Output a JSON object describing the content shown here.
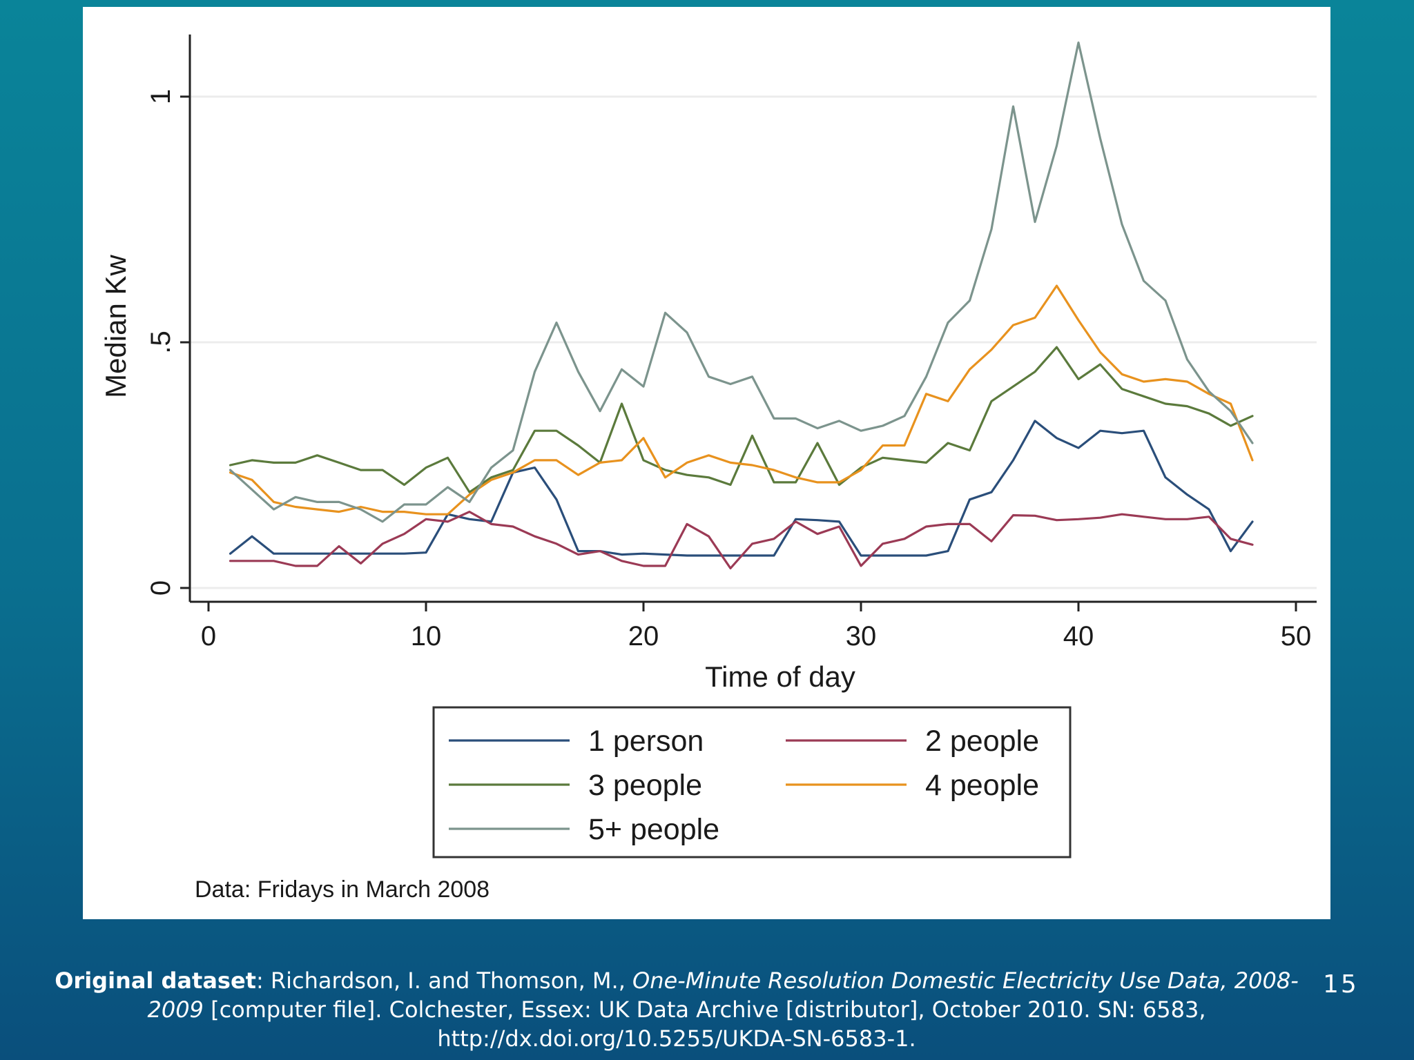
{
  "slide": {
    "number": "15"
  },
  "citation": {
    "label": "Original dataset",
    "authors": ": Richardson, I. and Thomson, M., ",
    "title_italic": "One-Minute Resolution Domestic Electricity Use Data, 2008-2009",
    "details": " [computer file]. Colchester, Essex: UK Data Archive [distributor], October 2010. SN: 6583, http://dx.doi.org/10.5255/UKDA-SN-6583-1."
  },
  "chart_data": {
    "type": "line",
    "title": "",
    "xlabel": "Time of day",
    "ylabel": "Median Kw",
    "xlim": [
      0,
      50
    ],
    "ylim": [
      0,
      1.15
    ],
    "x_ticks": [
      0,
      10,
      20,
      30,
      40,
      50
    ],
    "x_tick_labels": [
      "0",
      "10",
      "20",
      "30",
      "40",
      "50"
    ],
    "y_ticks": [
      0,
      0.5,
      1
    ],
    "y_tick_labels": [
      "0",
      ".5",
      "1"
    ],
    "grid": true,
    "legend_position": "bottom",
    "note": "Data: Fridays in March 2008",
    "x": [
      1,
      2,
      3,
      4,
      5,
      6,
      7,
      8,
      9,
      10,
      11,
      12,
      13,
      14,
      15,
      16,
      17,
      18,
      19,
      20,
      21,
      22,
      23,
      24,
      25,
      26,
      27,
      28,
      29,
      30,
      31,
      32,
      33,
      34,
      35,
      36,
      37,
      38,
      39,
      40,
      41,
      42,
      43,
      44,
      45,
      46,
      47,
      48
    ],
    "series": [
      {
        "name": "1 person",
        "color": "#2a4e7a",
        "values": [
          0.07,
          0.105,
          0.07,
          0.07,
          0.07,
          0.07,
          0.07,
          0.07,
          0.07,
          0.072,
          0.15,
          0.14,
          0.135,
          0.235,
          0.245,
          0.18,
          0.075,
          0.075,
          0.068,
          0.07,
          0.068,
          0.066,
          0.066,
          0.066,
          0.066,
          0.066,
          0.14,
          0.138,
          0.135,
          0.066,
          0.066,
          0.066,
          0.066,
          0.075,
          0.18,
          0.195,
          0.26,
          0.34,
          0.305,
          0.285,
          0.32,
          0.315,
          0.32,
          0.225,
          0.19,
          0.16,
          0.075,
          0.135
        ]
      },
      {
        "name": "2 people",
        "color": "#9b3a55",
        "values": [
          0.055,
          0.055,
          0.055,
          0.045,
          0.045,
          0.085,
          0.05,
          0.09,
          0.11,
          0.14,
          0.135,
          0.155,
          0.13,
          0.125,
          0.105,
          0.09,
          0.068,
          0.075,
          0.055,
          0.045,
          0.045,
          0.13,
          0.105,
          0.04,
          0.09,
          0.1,
          0.135,
          0.11,
          0.125,
          0.045,
          0.09,
          0.1,
          0.125,
          0.13,
          0.13,
          0.095,
          0.148,
          0.147,
          0.138,
          0.14,
          0.143,
          0.15,
          0.145,
          0.14,
          0.14,
          0.145,
          0.1,
          0.088
        ]
      },
      {
        "name": "3 people",
        "color": "#5b7a3c",
        "values": [
          0.25,
          0.26,
          0.255,
          0.255,
          0.27,
          0.255,
          0.24,
          0.24,
          0.21,
          0.245,
          0.265,
          0.195,
          0.225,
          0.24,
          0.32,
          0.32,
          0.29,
          0.255,
          0.375,
          0.26,
          0.24,
          0.23,
          0.225,
          0.21,
          0.31,
          0.215,
          0.215,
          0.295,
          0.21,
          0.245,
          0.265,
          0.26,
          0.255,
          0.295,
          0.28,
          0.38,
          0.41,
          0.44,
          0.49,
          0.425,
          0.455,
          0.405,
          0.39,
          0.375,
          0.37,
          0.355,
          0.33,
          0.35
        ]
      },
      {
        "name": "4 people",
        "color": "#e8921e",
        "values": [
          0.235,
          0.22,
          0.175,
          0.165,
          0.16,
          0.155,
          0.165,
          0.155,
          0.155,
          0.15,
          0.15,
          0.19,
          0.22,
          0.235,
          0.26,
          0.26,
          0.23,
          0.255,
          0.26,
          0.305,
          0.225,
          0.255,
          0.27,
          0.255,
          0.25,
          0.24,
          0.225,
          0.215,
          0.215,
          0.24,
          0.29,
          0.29,
          0.395,
          0.38,
          0.445,
          0.485,
          0.535,
          0.55,
          0.615,
          0.545,
          0.48,
          0.435,
          0.42,
          0.425,
          0.42,
          0.395,
          0.375,
          0.26
        ]
      },
      {
        "name": "5+ people",
        "color": "#7c948d",
        "values": [
          0.24,
          0.2,
          0.16,
          0.185,
          0.175,
          0.175,
          0.16,
          0.135,
          0.17,
          0.17,
          0.205,
          0.175,
          0.245,
          0.28,
          0.44,
          0.54,
          0.44,
          0.36,
          0.445,
          0.41,
          0.56,
          0.52,
          0.43,
          0.415,
          0.43,
          0.345,
          0.345,
          0.325,
          0.34,
          0.32,
          0.33,
          0.35,
          0.43,
          0.54,
          0.585,
          0.73,
          0.98,
          0.745,
          0.9,
          1.11,
          0.915,
          0.74,
          0.625,
          0.585,
          0.465,
          0.4,
          0.36,
          0.295
        ]
      }
    ]
  }
}
